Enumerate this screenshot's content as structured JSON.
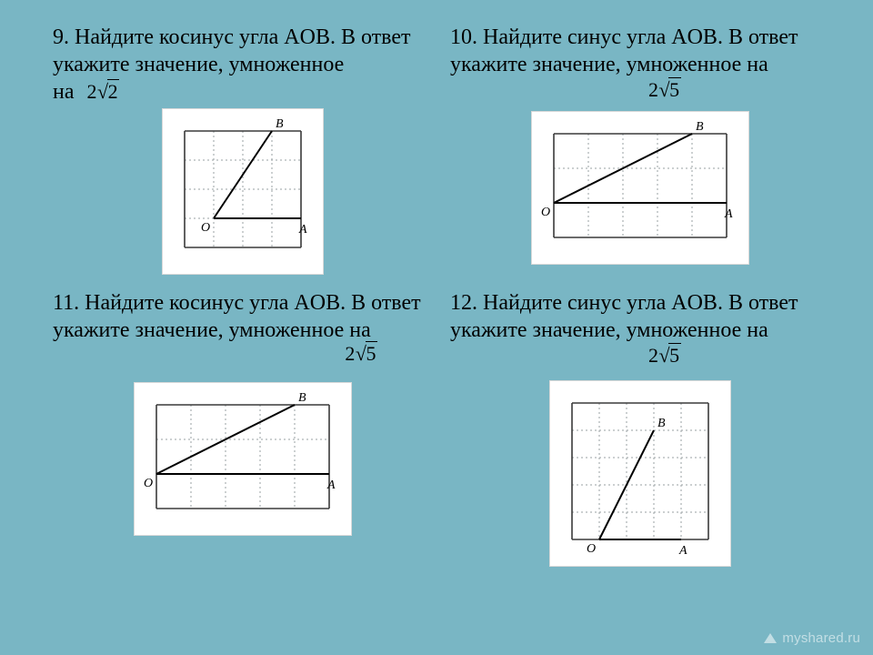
{
  "background_color": "#79b6c4",
  "text_color": "#000000",
  "font_family": "Times New Roman",
  "problems": {
    "p9": {
      "number": "9.",
      "text": "Найдите косинус угла AOB. В ответ укажите значение, умноженное",
      "cont": "на",
      "multiplier": {
        "coef": "2",
        "radicand": "2"
      },
      "diagram": {
        "cols": 4,
        "rows": 4,
        "cell": 32,
        "O": [
          1,
          3
        ],
        "A": [
          4,
          3
        ],
        "B": [
          3,
          0
        ],
        "labels": {
          "O": "O",
          "A": "A",
          "B": "B"
        }
      }
    },
    "p10": {
      "number": "10.",
      "text": "Найдите синус угла AOB. В ответ укажите значение, умноженное на",
      "multiplier": {
        "coef": "2",
        "radicand": "5"
      },
      "diagram": {
        "cols": 5,
        "rows": 3,
        "cell": 38,
        "O": [
          0,
          2
        ],
        "A": [
          5,
          2
        ],
        "B": [
          4,
          0
        ],
        "labels": {
          "O": "O",
          "A": "A",
          "B": "B"
        }
      }
    },
    "p11": {
      "number": "11.",
      "text": "Найдите косинус угла AOB. В ответ укажите значение, умноженное на",
      "multiplier": {
        "coef": "2",
        "radicand": "5"
      },
      "diagram": {
        "cols": 5,
        "rows": 3,
        "cell": 38,
        "O": [
          0,
          2
        ],
        "A": [
          5,
          2
        ],
        "B": [
          4,
          0
        ],
        "labels": {
          "O": "O",
          "A": "A",
          "B": "B"
        }
      }
    },
    "p12": {
      "number": "12.",
      "text": "Найдите синус угла AOB. В ответ укажите значение, умноженное на",
      "multiplier": {
        "coef": "2",
        "radicand": "5"
      },
      "diagram": {
        "cols": 5,
        "rows": 5,
        "cell": 30,
        "O": [
          1,
          5
        ],
        "A": [
          4,
          5
        ],
        "B": [
          3,
          1
        ],
        "labels": {
          "O": "O",
          "A": "A",
          "B": "B"
        }
      }
    }
  },
  "diagram_style": {
    "grid_color": "#9aa0a3",
    "grid_dash": "2 3",
    "border_color": "#3a3a3a",
    "line_color": "#000000",
    "label_font": "Times New Roman italic",
    "label_fontsize": 14,
    "figure_bg": "#ffffff",
    "figure_border": "#d9d9d9"
  },
  "watermark": "myshared.ru"
}
